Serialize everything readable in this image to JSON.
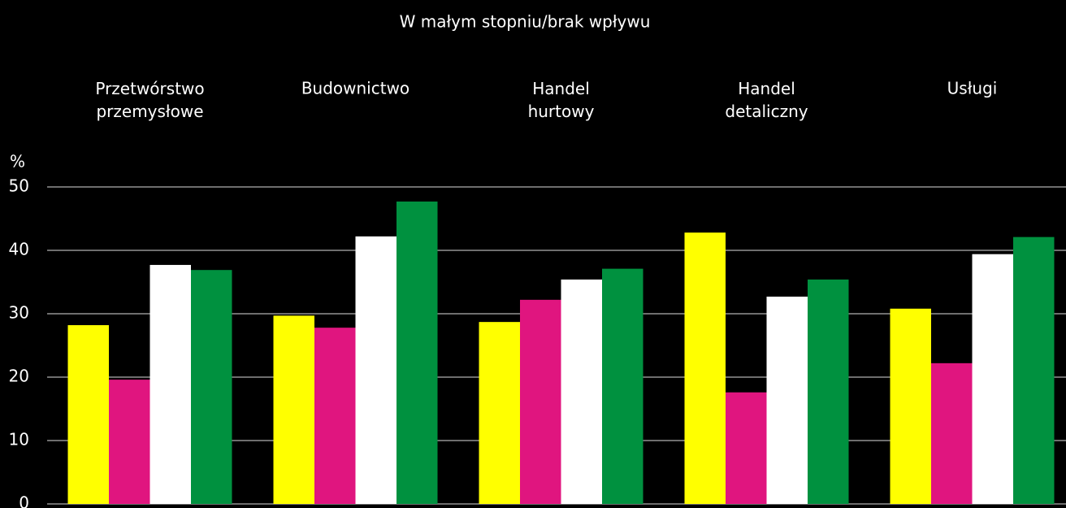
{
  "chart_data": {
    "type": "bar",
    "title": "W małym stopniu/brak wpływu",
    "y_label": "%",
    "categories": [
      "Przetwórstwo przemysłowe",
      "Budownictwo",
      "Handel hurtowy",
      "Handel detaliczny",
      "Usługi"
    ],
    "series": [
      {
        "color": "#ffff00",
        "values": [
          28.2,
          29.7,
          28.7,
          42.8,
          30.8
        ]
      },
      {
        "color": "#e0157f",
        "values": [
          19.6,
          27.8,
          32.2,
          17.6,
          22.2
        ]
      },
      {
        "color": "#ffffff",
        "values": [
          37.7,
          42.2,
          35.4,
          32.7,
          39.4
        ]
      },
      {
        "color": "#00913f",
        "values": [
          36.9,
          47.7,
          37.1,
          35.4,
          42.1
        ]
      }
    ],
    "ylim": [
      0,
      50
    ],
    "yticks": [
      0,
      10,
      20,
      30,
      40,
      50
    ],
    "grid": true
  }
}
